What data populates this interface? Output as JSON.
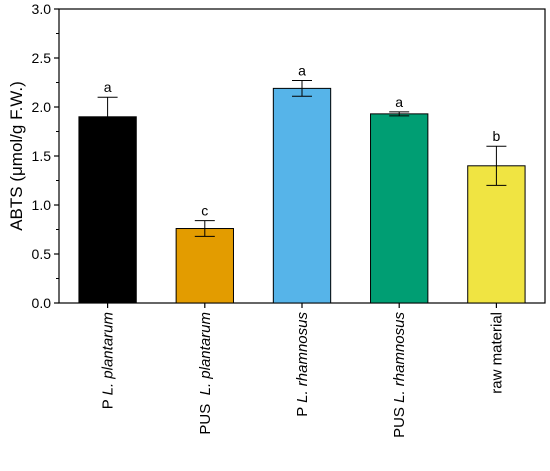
{
  "chart_data": {
    "type": "bar",
    "ylabel": "ABTS (μmol/g F.W.)",
    "xlabel": "",
    "ylim": [
      0,
      3.0
    ],
    "yticks": [
      "0.0",
      "0.5",
      "1.0",
      "1.5",
      "2.0",
      "2.5",
      "3.0"
    ],
    "grid": false,
    "categories": [
      {
        "prefix": "P ",
        "italic": "L. plantarum",
        "suffix": ""
      },
      {
        "prefix": "PUS  ",
        "italic": "L. plantarum",
        "suffix": ""
      },
      {
        "prefix": "P ",
        "italic": "L. rhamnosus",
        "suffix": ""
      },
      {
        "prefix": "PUS ",
        "italic": "L. rhamnosus",
        "suffix": ""
      },
      {
        "prefix": "raw material",
        "italic": "",
        "suffix": ""
      }
    ],
    "values": [
      1.9,
      0.76,
      2.19,
      1.93,
      1.4
    ],
    "errors": [
      0.2,
      0.08,
      0.08,
      0.02,
      0.2
    ],
    "significance": [
      "a",
      "c",
      "a",
      "a",
      "b"
    ],
    "colors": [
      "#000000",
      "#e39c00",
      "#56b4e9",
      "#009e73",
      "#f0e442"
    ]
  }
}
